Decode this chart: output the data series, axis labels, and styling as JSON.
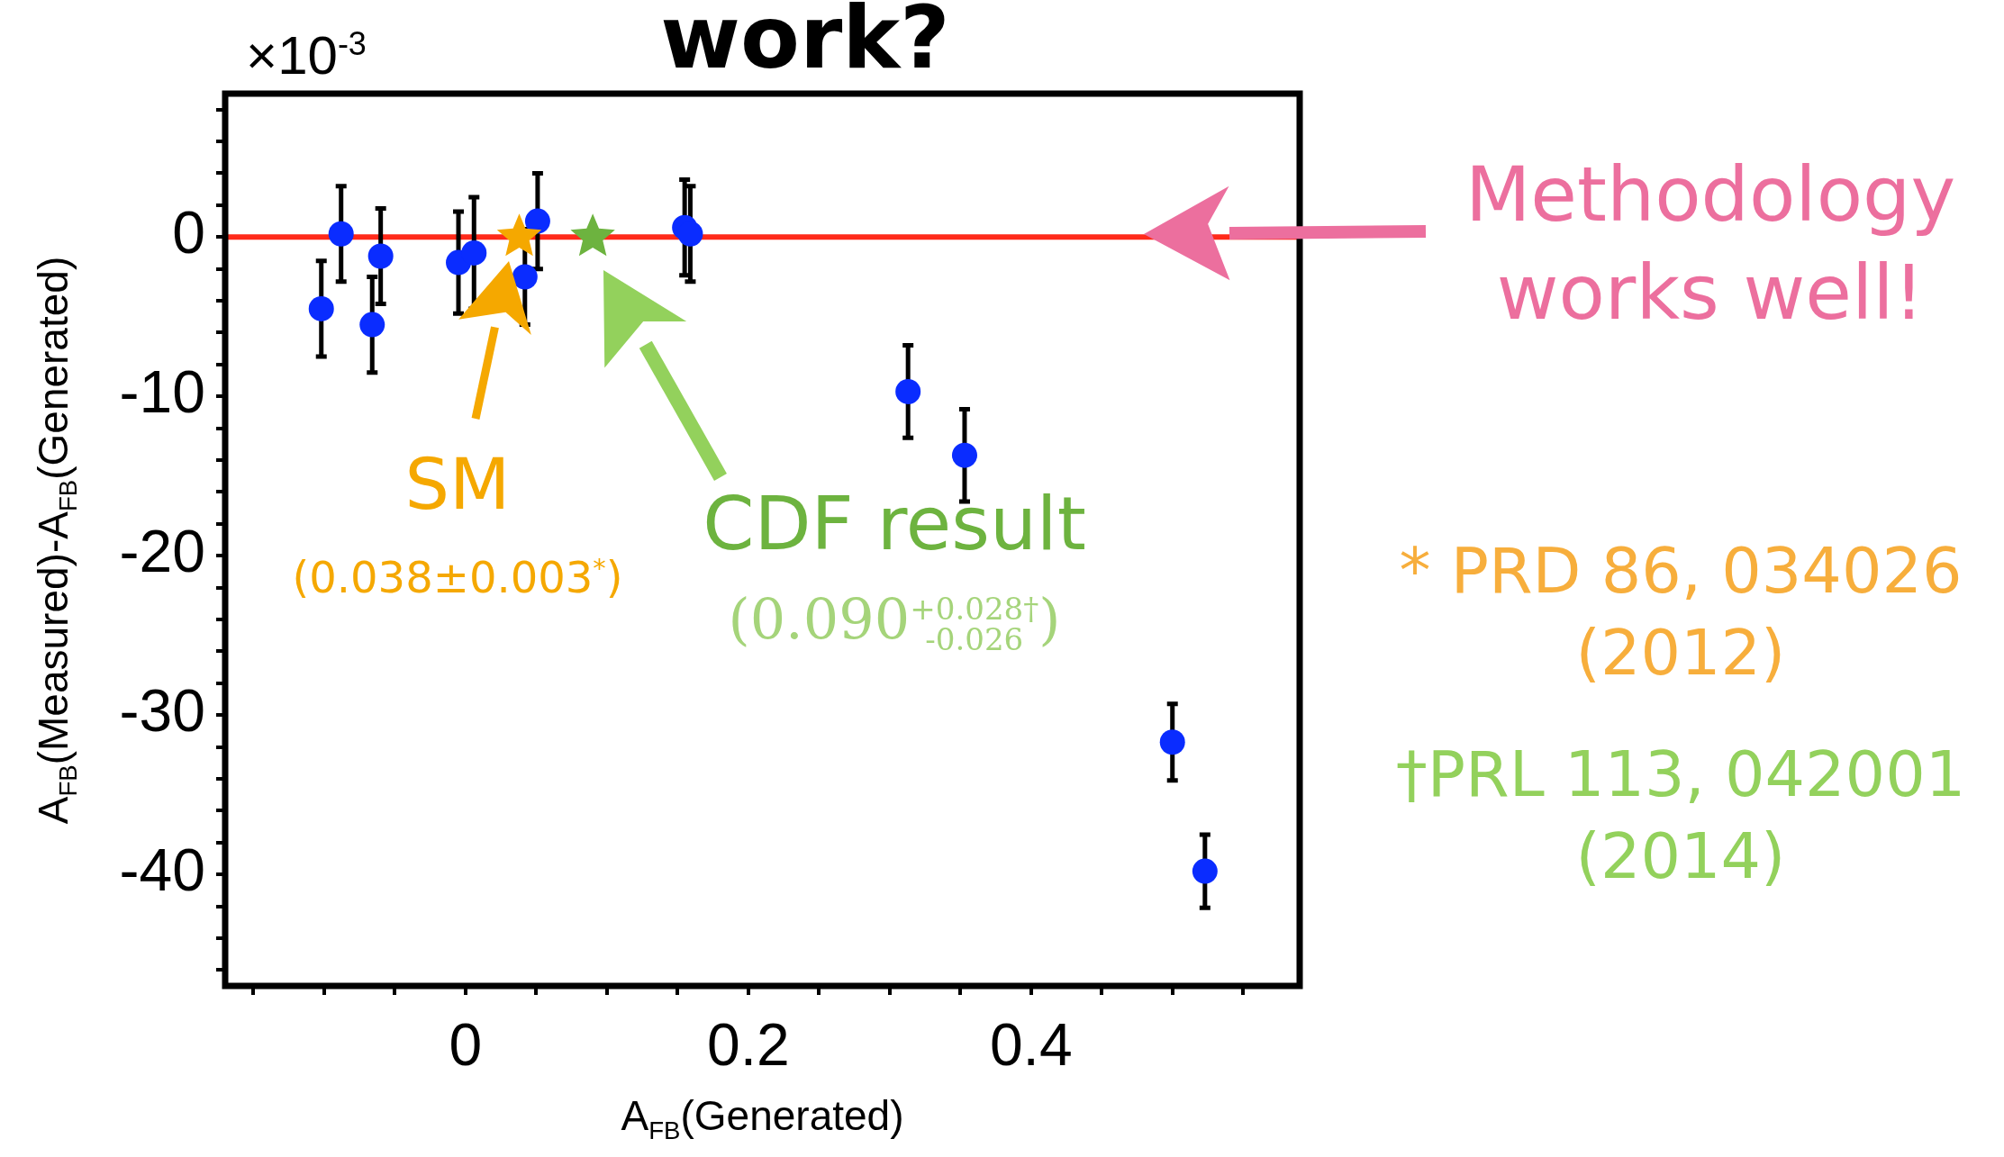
{
  "chart_data": {
    "type": "scatter",
    "title": "work?",
    "xlabel": "A$_{FB}$(Generated)",
    "ylabel": "A$_{FB}$(Measured)-A$_{FB}$(Generated)",
    "xlim": [
      -0.17,
      0.59
    ],
    "xticks": [
      {
        "value": -0.15,
        "label": null
      },
      {
        "value": -0.1,
        "label": null
      },
      {
        "value": -0.05,
        "label": null
      },
      0,
      {
        "value": 0.05,
        "label": null
      },
      {
        "value": 0.1,
        "label": null
      },
      {
        "value": 0.15,
        "label": null
      },
      {
        "value": 0.2,
        "label": "0.2"
      },
      {
        "value": 0.25,
        "label": null
      },
      {
        "value": 0.3,
        "label": null
      },
      {
        "value": 0.35,
        "label": null
      },
      {
        "value": 0.4,
        "label": "0.4"
      },
      {
        "value": 0.45,
        "label": null
      },
      {
        "value": 0.5,
        "label": null
      },
      {
        "value": 0.55,
        "label": null
      }
    ],
    "ylim": [
      -47,
      9
    ],
    "yticks": [
      {
        "value": 8,
        "label": null
      },
      {
        "value": 6,
        "label": null
      },
      {
        "value": 4,
        "label": null
      },
      {
        "value": 2,
        "label": null
      },
      0,
      {
        "value": -2,
        "label": null
      },
      {
        "value": -4,
        "label": null
      },
      {
        "value": -6,
        "label": null
      },
      {
        "value": -8,
        "label": null
      },
      -10,
      {
        "value": -12,
        "label": null
      },
      {
        "value": -14,
        "label": null
      },
      {
        "value": -16,
        "label": null
      },
      {
        "value": -18,
        "label": null
      },
      -20,
      {
        "value": -22,
        "label": null
      },
      {
        "value": -24,
        "label": null
      },
      {
        "value": -26,
        "label": null
      },
      {
        "value": -28,
        "label": null
      },
      -30,
      {
        "value": -32,
        "label": null
      },
      {
        "value": -34,
        "label": null
      },
      {
        "value": -36,
        "label": null
      },
      {
        "value": -38,
        "label": null
      },
      -40,
      {
        "value": -42,
        "label": null
      },
      {
        "value": -44,
        "label": null
      },
      {
        "value": -46,
        "label": null
      }
    ],
    "series": [
      {
        "type": "scatter",
        "marker": "circle",
        "color": "#0a2cff",
        "x": [
          -0.102,
          -0.088,
          -0.066,
          -0.06,
          -0.005,
          0.006,
          0.042,
          0.051,
          0.155,
          0.159,
          0.313,
          0.353,
          0.5,
          0.523
        ],
        "values": [
          -4.5,
          0.2,
          -5.5,
          -1.2,
          -1.6,
          -1.0,
          -2.5,
          1.0,
          0.6,
          0.2,
          -9.7,
          -13.7,
          -31.7,
          -39.8
        ],
        "errors": [
          3,
          3,
          3,
          3,
          3.2,
          3.5,
          3,
          3,
          3,
          3,
          2.9,
          2.9,
          2.4,
          2.3
        ]
      },
      {
        "type": "scatter",
        "marker": "star",
        "colors": [
          "#f5a800",
          "#6db33f"
        ],
        "x": [
          0.038,
          0.09
        ],
        "values": [
          0,
          0
        ]
      }
    ],
    "ref_lines": [
      {
        "axis": "y",
        "value": 0,
        "color": "#ff2a1a"
      }
    ],
    "annotations": [
      "×10$^{-3}$",
      "SM",
      "(0.038±0.003$^{*}$)",
      "CDF result",
      "(0.090$^{+0.028†}$$_{-0.026}$)",
      "Methodology works well!",
      "* PRD 86, 034026 (2012)",
      "†PRL 113, 042001 (2014)"
    ]
  }
}
